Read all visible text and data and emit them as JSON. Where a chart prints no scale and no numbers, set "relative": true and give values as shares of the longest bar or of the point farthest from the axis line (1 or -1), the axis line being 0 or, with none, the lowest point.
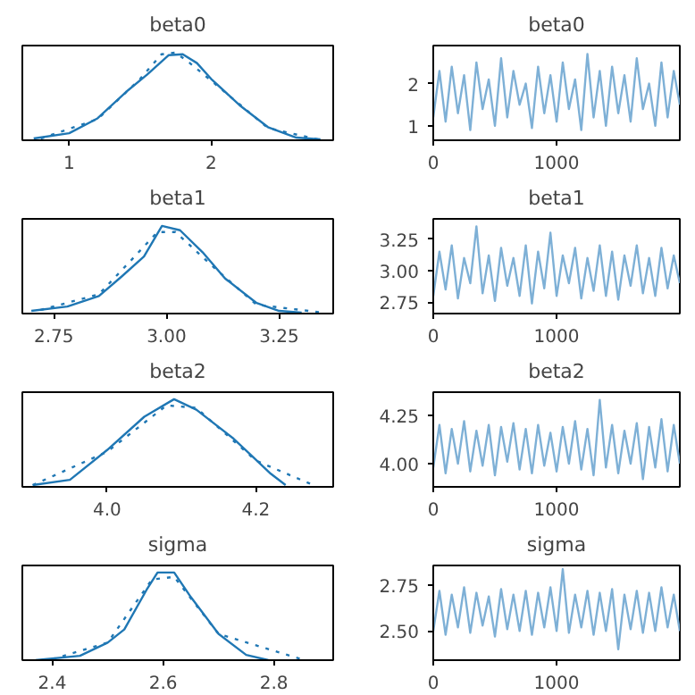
{
  "chart_data": [
    {
      "type": "line",
      "title": "beta0",
      "relative": true,
      "tick_labels": "x",
      "grid": false,
      "xlim": [
        0.67,
        2.86
      ],
      "xticks": [
        1,
        2
      ],
      "series": [
        {
          "color": "#1f77b4",
          "line_style": "solid",
          "x": [
            0.75,
            1.0,
            1.2,
            1.4,
            1.55,
            1.7,
            1.8,
            1.9,
            2.0,
            2.2,
            2.4,
            2.6,
            2.77
          ],
          "values": [
            0.02,
            0.08,
            0.25,
            0.55,
            0.75,
            0.97,
            0.98,
            0.88,
            0.7,
            0.4,
            0.15,
            0.03,
            0.01
          ]
        },
        {
          "color": "#1f77b4",
          "line_style": "dotted",
          "x": [
            0.8,
            1.2,
            1.5,
            1.65,
            1.75,
            1.85,
            2.0,
            2.4,
            2.75
          ],
          "values": [
            0.02,
            0.24,
            0.7,
            0.98,
            1.0,
            0.88,
            0.68,
            0.14,
            0.01
          ]
        }
      ]
    },
    {
      "type": "line",
      "title": "beta0",
      "grid": false,
      "xlim": [
        0,
        1999
      ],
      "xticks": [
        0,
        1000
      ],
      "ylim": [
        0.66,
        2.9
      ],
      "yticks": [
        1,
        2
      ],
      "x": [
        0,
        50,
        100,
        150,
        200,
        250,
        300,
        350,
        400,
        450,
        500,
        550,
        600,
        650,
        700,
        750,
        800,
        850,
        900,
        950,
        1000,
        1050,
        1100,
        1150,
        1200,
        1250,
        1300,
        1350,
        1400,
        1450,
        1500,
        1550,
        1600,
        1650,
        1700,
        1750,
        1800,
        1850,
        1900,
        1950,
        1999
      ],
      "series": [
        {
          "color": "#7eb0d6",
          "line_style": "solid",
          "values": [
            1.2,
            2.3,
            1.1,
            2.4,
            1.3,
            2.2,
            0.9,
            2.5,
            1.4,
            2.1,
            1.0,
            2.6,
            1.2,
            2.3,
            1.5,
            2.0,
            0.95,
            2.4,
            1.3,
            2.2,
            1.1,
            2.5,
            1.4,
            2.1,
            0.9,
            2.7,
            1.2,
            2.3,
            1.0,
            2.4,
            1.3,
            2.2,
            1.1,
            2.6,
            1.4,
            2.0,
            1.0,
            2.5,
            1.2,
            2.3,
            1.5
          ]
        }
      ]
    },
    {
      "type": "line",
      "title": "beta1",
      "relative": true,
      "tick_labels": "x",
      "grid": false,
      "xlim": [
        2.68,
        3.37
      ],
      "xticks": [
        2.75,
        {
          "value": 3.0,
          "label": "3.00"
        },
        3.25
      ],
      "series": [
        {
          "color": "#1f77b4",
          "line_style": "solid",
          "x": [
            2.7,
            2.78,
            2.85,
            2.9,
            2.95,
            2.99,
            3.03,
            3.08,
            3.13,
            3.2,
            3.25,
            3.3
          ],
          "values": [
            0.03,
            0.08,
            0.2,
            0.42,
            0.65,
            1.0,
            0.95,
            0.7,
            0.4,
            0.12,
            0.03,
            0.01
          ]
        },
        {
          "color": "#1f77b4",
          "line_style": "dotted",
          "x": [
            2.72,
            2.85,
            2.92,
            2.98,
            3.02,
            3.1,
            3.2,
            3.35
          ],
          "values": [
            0.04,
            0.22,
            0.6,
            0.93,
            0.93,
            0.55,
            0.1,
            0.01
          ]
        }
      ]
    },
    {
      "type": "line",
      "title": "beta1",
      "grid": false,
      "xlim": [
        0,
        1999
      ],
      "xticks": [
        0,
        1000
      ],
      "ylim": [
        2.66,
        3.41
      ],
      "yticks": [
        2.75,
        {
          "value": 3.0,
          "label": "3.00"
        },
        3.25
      ],
      "x": [
        0,
        50,
        100,
        150,
        200,
        250,
        300,
        350,
        400,
        450,
        500,
        550,
        600,
        650,
        700,
        750,
        800,
        850,
        900,
        950,
        1000,
        1050,
        1100,
        1150,
        1200,
        1250,
        1300,
        1350,
        1400,
        1450,
        1500,
        1550,
        1600,
        1650,
        1700,
        1750,
        1800,
        1850,
        1900,
        1950,
        1999
      ],
      "series": [
        {
          "color": "#7eb0d6",
          "line_style": "solid",
          "values": [
            2.8,
            3.15,
            2.85,
            3.2,
            2.78,
            3.1,
            2.9,
            3.35,
            2.82,
            3.12,
            2.76,
            3.18,
            2.88,
            3.1,
            2.8,
            3.2,
            2.74,
            3.15,
            2.86,
            3.3,
            2.8,
            3.12,
            2.9,
            3.18,
            2.78,
            3.1,
            2.84,
            3.2,
            2.8,
            3.15,
            2.77,
            3.12,
            2.88,
            3.2,
            2.82,
            3.1,
            2.8,
            3.18,
            2.86,
            3.12,
            2.9
          ]
        }
      ]
    },
    {
      "type": "line",
      "title": "beta2",
      "relative": true,
      "tick_labels": "x",
      "grid": false,
      "xlim": [
        3.886,
        4.304
      ],
      "xticks": [
        {
          "value": 4.0,
          "label": "4.0"
        },
        4.2
      ],
      "series": [
        {
          "color": "#1f77b4",
          "line_style": "solid",
          "x": [
            3.9,
            3.95,
            4.0,
            4.05,
            4.09,
            4.12,
            4.17,
            4.22,
            4.24
          ],
          "values": [
            0.02,
            0.08,
            0.42,
            0.8,
            1.0,
            0.88,
            0.55,
            0.15,
            0.02
          ]
        },
        {
          "color": "#1f77b4",
          "line_style": "dotted",
          "x": [
            3.9,
            4.0,
            4.08,
            4.12,
            4.2,
            4.28
          ],
          "values": [
            0.02,
            0.4,
            0.93,
            0.9,
            0.3,
            0.01
          ]
        }
      ]
    },
    {
      "type": "line",
      "title": "beta2",
      "grid": false,
      "xlim": [
        0,
        1999
      ],
      "xticks": [
        0,
        1000
      ],
      "ylim": [
        3.88,
        4.37
      ],
      "yticks": [
        {
          "value": 4.0,
          "label": "4.00"
        },
        4.25
      ],
      "x": [
        0,
        50,
        100,
        150,
        200,
        250,
        300,
        350,
        400,
        450,
        500,
        550,
        600,
        650,
        700,
        750,
        800,
        850,
        900,
        950,
        1000,
        1050,
        1100,
        1150,
        1200,
        1250,
        1300,
        1350,
        1400,
        1450,
        1500,
        1550,
        1600,
        1650,
        1700,
        1750,
        1800,
        1850,
        1900,
        1950,
        1999
      ],
      "series": [
        {
          "color": "#7eb0d6",
          "line_style": "solid",
          "values": [
            3.98,
            4.2,
            3.95,
            4.18,
            4.0,
            4.22,
            3.96,
            4.17,
            3.99,
            4.2,
            3.94,
            4.19,
            4.01,
            4.21,
            3.97,
            4.18,
            3.95,
            4.2,
            3.99,
            4.16,
            3.96,
            4.19,
            4.0,
            4.22,
            3.97,
            4.18,
            3.94,
            4.33,
            3.98,
            4.2,
            3.95,
            4.17,
            4.0,
            4.21,
            3.92,
            4.19,
            3.98,
            4.23,
            3.96,
            4.2,
            4.0
          ]
        }
      ]
    },
    {
      "type": "line",
      "title": "sigma",
      "relative": true,
      "tick_labels": "x",
      "grid": false,
      "xlim": [
        2.346,
        2.907
      ],
      "xticks": [
        2.4,
        2.6,
        2.8
      ],
      "series": [
        {
          "color": "#1f77b4",
          "line_style": "solid",
          "x": [
            2.37,
            2.45,
            2.5,
            2.53,
            2.57,
            2.59,
            2.62,
            2.65,
            2.7,
            2.75,
            2.79
          ],
          "values": [
            0.0,
            0.05,
            0.2,
            0.35,
            0.8,
            1.0,
            1.0,
            0.72,
            0.3,
            0.06,
            0.0
          ]
        },
        {
          "color": "#1f77b4",
          "line_style": "dotted",
          "x": [
            2.4,
            2.5,
            2.58,
            2.62,
            2.7,
            2.85
          ],
          "values": [
            0.01,
            0.2,
            0.92,
            0.95,
            0.3,
            0.01
          ]
        }
      ]
    },
    {
      "type": "line",
      "title": "sigma",
      "grid": false,
      "xlim": [
        0,
        1999
      ],
      "xticks": [
        0,
        1000
      ],
      "ylim": [
        2.34,
        2.86
      ],
      "yticks": [
        {
          "value": 2.5,
          "label": "2.50"
        },
        2.75
      ],
      "x": [
        0,
        50,
        100,
        150,
        200,
        250,
        300,
        350,
        400,
        450,
        500,
        550,
        600,
        650,
        700,
        750,
        800,
        850,
        900,
        950,
        1000,
        1050,
        1100,
        1150,
        1200,
        1250,
        1300,
        1350,
        1400,
        1450,
        1500,
        1550,
        1600,
        1650,
        1700,
        1750,
        1800,
        1850,
        1900,
        1950,
        1999
      ],
      "series": [
        {
          "color": "#7eb0d6",
          "line_style": "solid",
          "values": [
            2.5,
            2.72,
            2.48,
            2.7,
            2.52,
            2.74,
            2.49,
            2.71,
            2.53,
            2.69,
            2.47,
            2.73,
            2.51,
            2.7,
            2.5,
            2.72,
            2.48,
            2.71,
            2.52,
            2.74,
            2.5,
            2.84,
            2.49,
            2.7,
            2.52,
            2.72,
            2.48,
            2.71,
            2.5,
            2.73,
            2.4,
            2.7,
            2.51,
            2.72,
            2.49,
            2.71,
            2.5,
            2.74,
            2.52,
            2.7,
            2.5
          ]
        }
      ]
    }
  ]
}
